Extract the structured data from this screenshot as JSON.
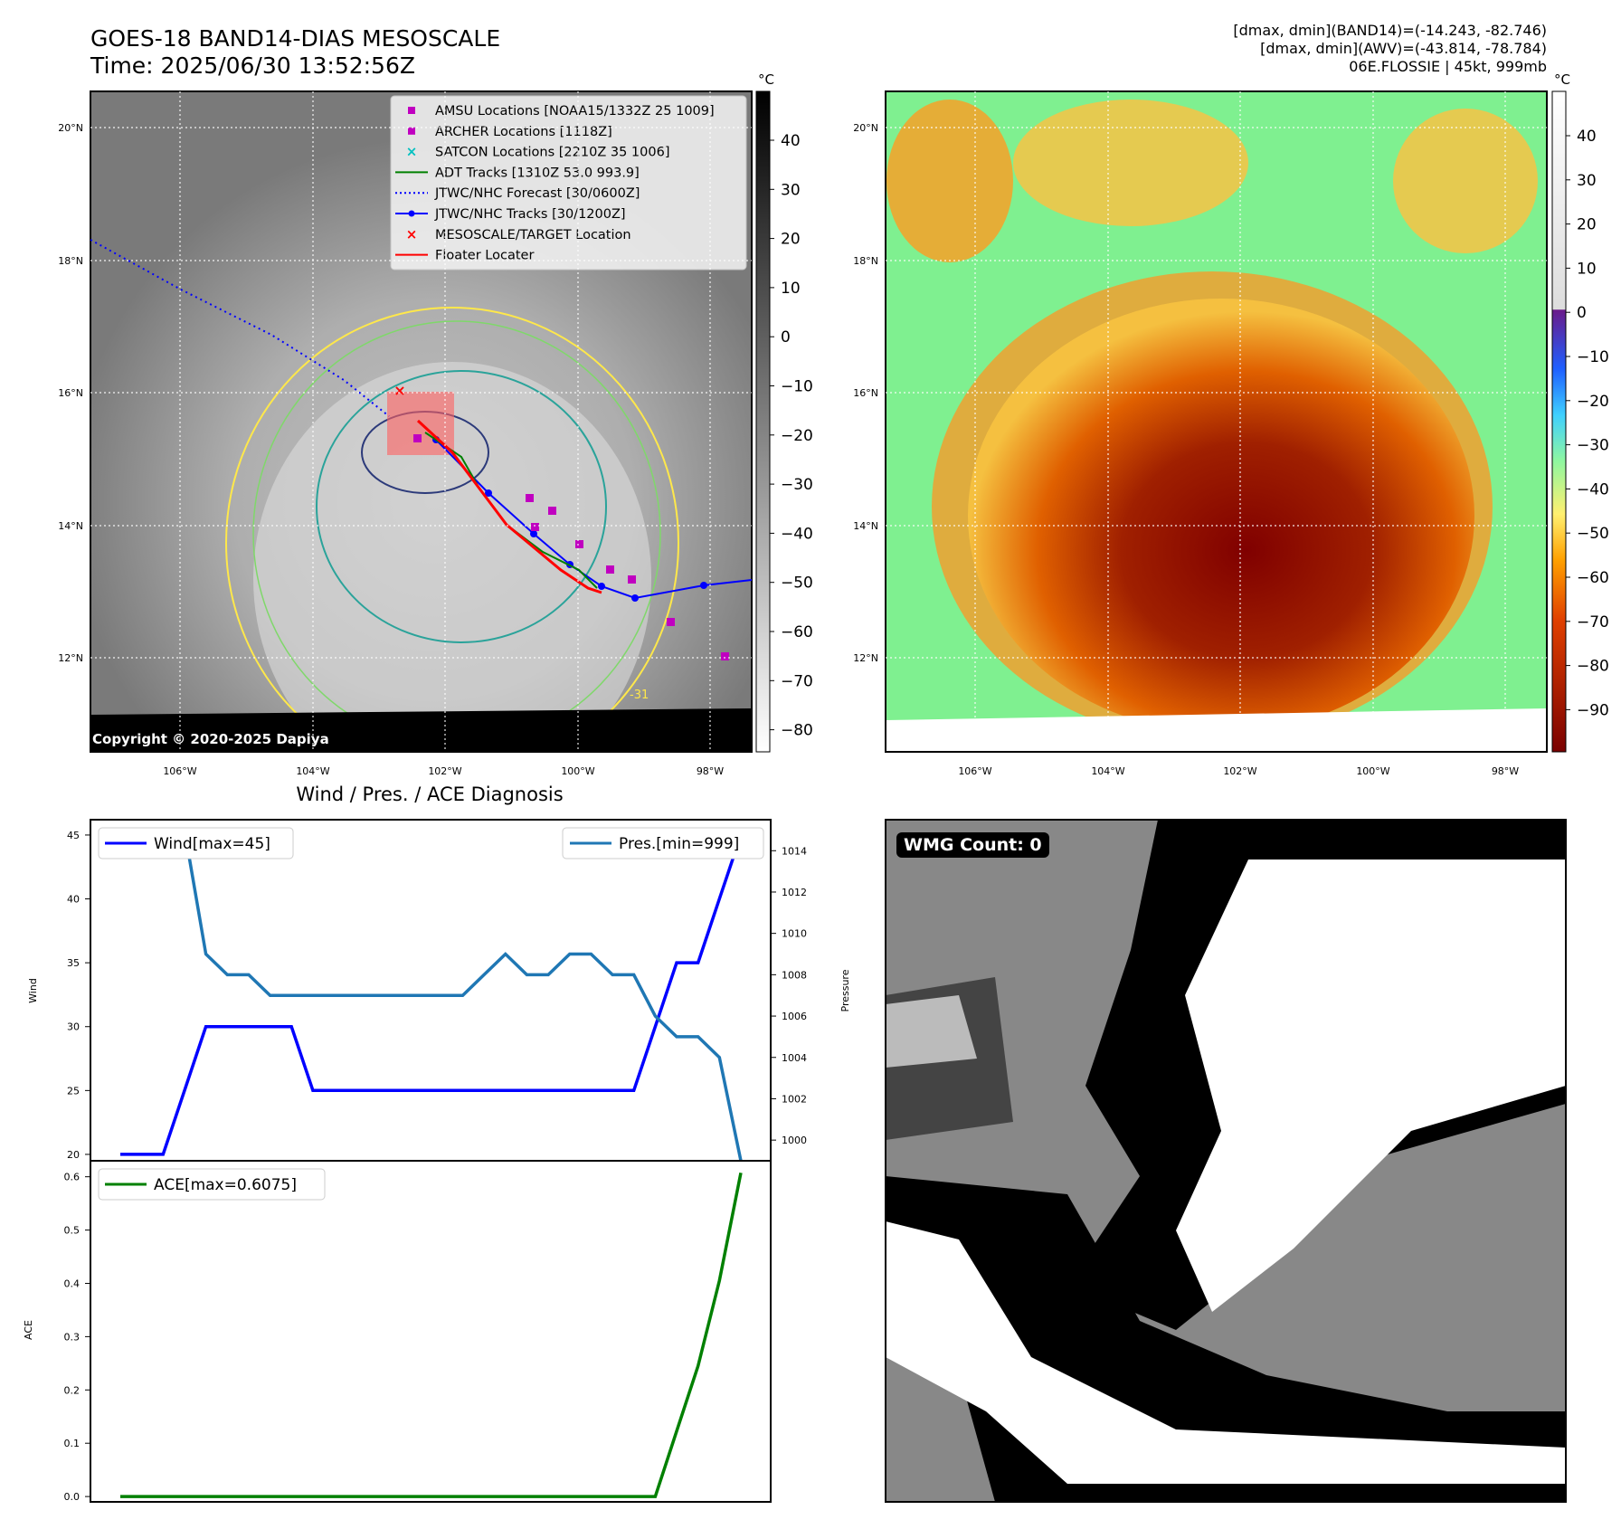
{
  "header": {
    "title": "GOES-18 BAND14-DIAS MESOSCALE",
    "time": "Time: 2025/06/30 13:52:56Z",
    "stats_band14": "[dmax, dmin](BAND14)=(-14.243, -82.746)",
    "stats_awv": "[dmax, dmin](AWV)=(-43.814, -78.784)",
    "storm": "06E.FLOSSIE | 45kt, 999mb"
  },
  "copyright": "Copyright © 2020-2025 Dapiya",
  "map": {
    "lat_labels": [
      "20°N",
      "18°N",
      "16°N",
      "14°N",
      "12°N"
    ],
    "lon_labels": [
      "106°W",
      "104°W",
      "102°W",
      "100°W",
      "98°W"
    ],
    "contour_label": "-31",
    "colorbar_gray": {
      "unit": "°C",
      "ticks": [
        "40",
        "30",
        "20",
        "10",
        "0",
        "−10",
        "−20",
        "−30",
        "−40",
        "−50",
        "−60",
        "−70",
        "−80"
      ]
    },
    "colorbar_color": {
      "unit": "°C",
      "ticks": [
        "40",
        "30",
        "20",
        "10",
        "0",
        "−10",
        "−20",
        "−30",
        "−40",
        "−50",
        "−60",
        "−70",
        "−80",
        "−90"
      ]
    },
    "legend": [
      {
        "label": "AMSU Locations [NOAA15/1332Z 25 1009]",
        "marker": "square",
        "color": "#c000c0"
      },
      {
        "label": "ARCHER Locations [1118Z]",
        "marker": "square",
        "color": "#c000c0"
      },
      {
        "label": "SATCON Locations [2210Z 35 1006]",
        "marker": "x",
        "color": "#00c0c0"
      },
      {
        "label": "ADT Tracks [1310Z 53.0 993.9]",
        "marker": "line",
        "color": "#008000"
      },
      {
        "label": "JTWC/NHC Forecast [30/0600Z]",
        "marker": "dotted",
        "color": "#0000ff"
      },
      {
        "label": "JTWC/NHC Tracks [30/1200Z]",
        "marker": "line-dot",
        "color": "#0000ff"
      },
      {
        "label": "MESOSCALE/TARGET Location",
        "marker": "x",
        "color": "#ff0000"
      },
      {
        "label": "Floater Locater",
        "marker": "line",
        "color": "#ff0000"
      }
    ]
  },
  "chart_data": [
    {
      "type": "line",
      "title": "Wind / Pres. / ACE Diagnosis",
      "ylabel": "Wind",
      "y2label": "Pressure",
      "ylim": [
        19.5,
        46.2
      ],
      "y2lim": [
        999.0,
        1015.5
      ],
      "yticks": [
        20,
        25,
        30,
        35,
        40,
        45
      ],
      "y2ticks": [
        1000,
        1002,
        1004,
        1006,
        1008,
        1010,
        1012,
        1014
      ],
      "x": [
        0,
        1,
        2,
        3,
        4,
        5,
        6,
        7,
        8,
        9,
        10,
        11,
        12,
        13,
        14,
        15,
        16,
        17,
        18,
        19,
        20,
        21,
        22,
        23,
        24,
        25,
        26,
        27,
        28,
        29
      ],
      "series": [
        {
          "name": "Wind[max=45]",
          "color": "#0000ff",
          "values": [
            20,
            20,
            20,
            25,
            30,
            30,
            30,
            30,
            30,
            25,
            25,
            25,
            25,
            25,
            25,
            25,
            25,
            25,
            25,
            25,
            25,
            25,
            25,
            25,
            25,
            30,
            35,
            35,
            40,
            45
          ]
        },
        {
          "name": "Pres.[min=999]",
          "color": "#1f77b4",
          "axis": "right",
          "values": [
            1015,
            1015,
            1015,
            1015,
            1009,
            1008,
            1008,
            1007,
            1007,
            1007,
            1007,
            1007,
            1007,
            1007,
            1007,
            1007,
            1007,
            1008,
            1009,
            1008,
            1008,
            1009,
            1009,
            1008,
            1008,
            1006,
            1005,
            1005,
            1004,
            999
          ]
        }
      ]
    },
    {
      "type": "line",
      "ylabel": "ACE",
      "ylim": [
        -0.01,
        0.63
      ],
      "yticks": [
        0.0,
        0.1,
        0.2,
        0.3,
        0.4,
        0.5,
        0.6
      ],
      "x": [
        0,
        1,
        2,
        3,
        4,
        5,
        6,
        7,
        8,
        9,
        10,
        11,
        12,
        13,
        14,
        15,
        16,
        17,
        18,
        19,
        20,
        21,
        22,
        23,
        24,
        25,
        26,
        27,
        28,
        29
      ],
      "series": [
        {
          "name": "ACE[max=0.6075]",
          "color": "#008000",
          "values": [
            0,
            0,
            0,
            0,
            0,
            0,
            0,
            0,
            0,
            0,
            0,
            0,
            0,
            0,
            0,
            0,
            0,
            0,
            0,
            0,
            0,
            0,
            0,
            0,
            0,
            0,
            0.1225,
            0.245,
            0.405,
            0.6075
          ]
        }
      ]
    }
  ],
  "wmg": {
    "label": "WMG Count: 0"
  }
}
